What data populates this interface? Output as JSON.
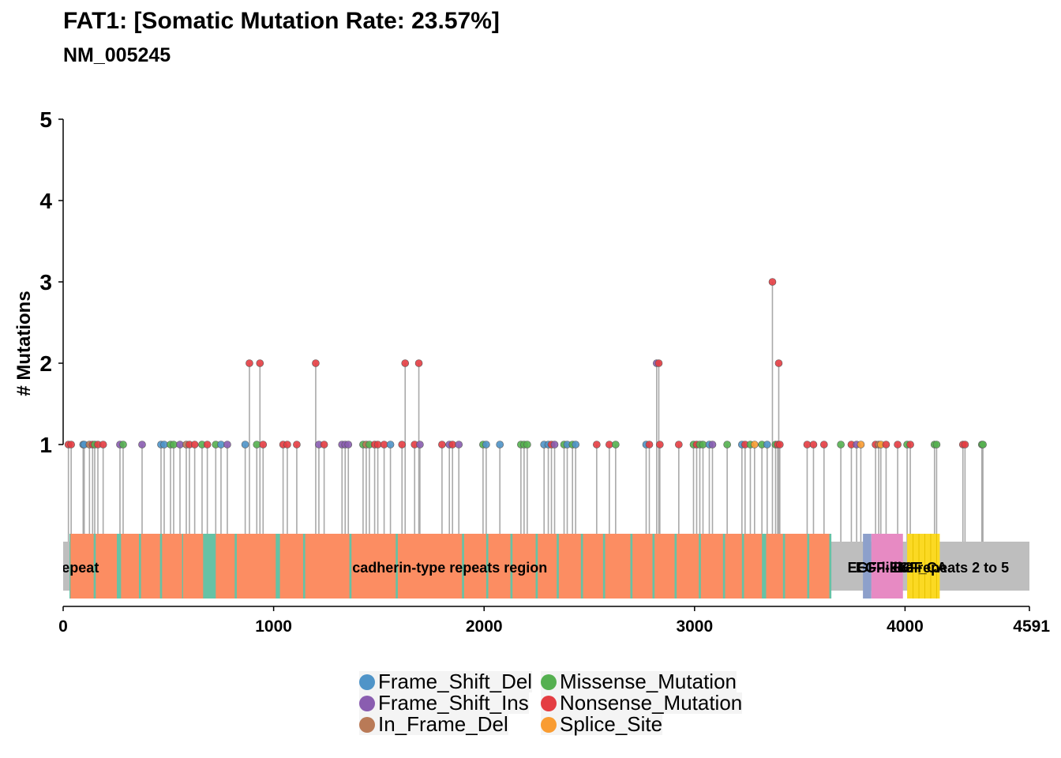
{
  "title": "FAT1: [Somatic Mutation Rate: 23.57%]",
  "subtitle": "NM_005245",
  "chart_data": {
    "type": "lollipop",
    "ylabel": "# Mutations",
    "xlabel": "",
    "xlim": [
      0,
      4591
    ],
    "ylim": [
      0,
      5
    ],
    "x_ticks": [
      0,
      1000,
      2000,
      3000,
      4000,
      4591
    ],
    "y_ticks": [
      1,
      2,
      3,
      4,
      5
    ],
    "grid": false,
    "legend_position": "bottom",
    "colors": {
      "Frame_Shift_Del": "#4f94c8",
      "Frame_Shift_Ins": "#8a5db0",
      "In_Frame_Del": "#b97a57",
      "Missense_Mutation": "#55b050",
      "Nonsense_Mutation": "#e43d42",
      "Splice_Site": "#f99c32"
    },
    "legend": [
      {
        "label": "Frame_Shift_Del",
        "type": "Frame_Shift_Del"
      },
      {
        "label": "Frame_Shift_Ins",
        "type": "Frame_Shift_Ins"
      },
      {
        "label": "In_Frame_Del",
        "type": "In_Frame_Del"
      },
      {
        "label": "Missense_Mutation",
        "type": "Missense_Mutation"
      },
      {
        "label": "Nonsense_Mutation",
        "type": "Nonsense_Mutation"
      },
      {
        "label": "Splice_Site",
        "type": "Splice_Site"
      }
    ],
    "protein_length": 4591,
    "domains": [
      {
        "name": "",
        "start": 30,
        "end": 3650,
        "color": "#66c2a5"
      },
      {
        "name": "",
        "start": 3800,
        "end": 3840,
        "color": "#8da0cb"
      },
      {
        "name": "",
        "start": 3840,
        "end": 3990,
        "color": "#e78ac3"
      },
      {
        "name": "",
        "start": 4010,
        "end": 4165,
        "color": "#fbd923"
      }
    ],
    "repeats": [
      [
        35,
        145
      ],
      [
        155,
        255
      ],
      [
        275,
        360
      ],
      [
        370,
        460
      ],
      [
        470,
        565
      ],
      [
        570,
        665
      ],
      [
        725,
        815
      ],
      [
        825,
        1010
      ],
      [
        1030,
        1140
      ],
      [
        1150,
        1360
      ],
      [
        1370,
        1580
      ],
      [
        1590,
        1895
      ],
      [
        1905,
        2010
      ],
      [
        2020,
        2125
      ],
      [
        2135,
        2245
      ],
      [
        2255,
        2345
      ],
      [
        2355,
        2460
      ],
      [
        2470,
        2565
      ],
      [
        2575,
        2695
      ],
      [
        2705,
        2800
      ],
      [
        2810,
        2905
      ],
      [
        2915,
        3020
      ],
      [
        3030,
        3135
      ],
      [
        3145,
        3225
      ],
      [
        3235,
        3320
      ],
      [
        3340,
        3420
      ],
      [
        3430,
        3535
      ],
      [
        3545,
        3640
      ]
    ],
    "repeat_color": "#fc8d62",
    "labels": [
      {
        "text": "erin_repeat",
        "x": -12
      },
      {
        "text": "cadherin-type repeats region",
        "x": 1837
      },
      {
        "text": "EGF-like repeats 2 to 5",
        "x": 4130
      },
      {
        "text": "EGF-like",
        "x": 3864
      },
      {
        "text": "EGF_CA",
        "x": 4063
      },
      {
        "text": "EGF",
        "x": 4014
      }
    ],
    "mutations": [
      {
        "pos": 25,
        "count": 1,
        "type": "Nonsense_Mutation"
      },
      {
        "pos": 38,
        "count": 1,
        "type": "Nonsense_Mutation"
      },
      {
        "pos": 95,
        "count": 1,
        "type": "Frame_Shift_Del"
      },
      {
        "pos": 100,
        "count": 1,
        "type": "Frame_Shift_Del"
      },
      {
        "pos": 125,
        "count": 1,
        "type": "In_Frame_Del"
      },
      {
        "pos": 140,
        "count": 1,
        "type": "Nonsense_Mutation"
      },
      {
        "pos": 150,
        "count": 1,
        "type": "Missense_Mutation"
      },
      {
        "pos": 165,
        "count": 1,
        "type": "Nonsense_Mutation"
      },
      {
        "pos": 190,
        "count": 1,
        "type": "Nonsense_Mutation"
      },
      {
        "pos": 270,
        "count": 1,
        "type": "Frame_Shift_Ins"
      },
      {
        "pos": 285,
        "count": 1,
        "type": "Missense_Mutation"
      },
      {
        "pos": 375,
        "count": 1,
        "type": "Frame_Shift_Ins"
      },
      {
        "pos": 465,
        "count": 1,
        "type": "Frame_Shift_Del"
      },
      {
        "pos": 480,
        "count": 1,
        "type": "Frame_Shift_Del"
      },
      {
        "pos": 510,
        "count": 1,
        "type": "Missense_Mutation"
      },
      {
        "pos": 525,
        "count": 1,
        "type": "Missense_Mutation"
      },
      {
        "pos": 555,
        "count": 1,
        "type": "Frame_Shift_Ins"
      },
      {
        "pos": 585,
        "count": 1,
        "type": "In_Frame_Del"
      },
      {
        "pos": 600,
        "count": 1,
        "type": "Nonsense_Mutation"
      },
      {
        "pos": 625,
        "count": 1,
        "type": "Nonsense_Mutation"
      },
      {
        "pos": 660,
        "count": 1,
        "type": "Missense_Mutation"
      },
      {
        "pos": 685,
        "count": 1,
        "type": "Nonsense_Mutation"
      },
      {
        "pos": 725,
        "count": 1,
        "type": "Missense_Mutation"
      },
      {
        "pos": 750,
        "count": 1,
        "type": "Frame_Shift_Del"
      },
      {
        "pos": 780,
        "count": 1,
        "type": "Frame_Shift_Ins"
      },
      {
        "pos": 865,
        "count": 1,
        "type": "Frame_Shift_Del"
      },
      {
        "pos": 885,
        "count": 2,
        "type": "Nonsense_Mutation"
      },
      {
        "pos": 920,
        "count": 1,
        "type": "Missense_Mutation"
      },
      {
        "pos": 935,
        "count": 2,
        "type": "Nonsense_Mutation"
      },
      {
        "pos": 950,
        "count": 1,
        "type": "Nonsense_Mutation"
      },
      {
        "pos": 1045,
        "count": 1,
        "type": "Nonsense_Mutation"
      },
      {
        "pos": 1065,
        "count": 1,
        "type": "Nonsense_Mutation"
      },
      {
        "pos": 1110,
        "count": 1,
        "type": "Nonsense_Mutation"
      },
      {
        "pos": 1200,
        "count": 2,
        "type": "Nonsense_Mutation"
      },
      {
        "pos": 1215,
        "count": 1,
        "type": "Frame_Shift_Ins"
      },
      {
        "pos": 1240,
        "count": 1,
        "type": "Nonsense_Mutation"
      },
      {
        "pos": 1325,
        "count": 1,
        "type": "Frame_Shift_Ins"
      },
      {
        "pos": 1340,
        "count": 1,
        "type": "Frame_Shift_Ins"
      },
      {
        "pos": 1355,
        "count": 1,
        "type": "Frame_Shift_Ins"
      },
      {
        "pos": 1425,
        "count": 1,
        "type": "Missense_Mutation"
      },
      {
        "pos": 1440,
        "count": 1,
        "type": "In_Frame_Del"
      },
      {
        "pos": 1455,
        "count": 1,
        "type": "Missense_Mutation"
      },
      {
        "pos": 1480,
        "count": 1,
        "type": "Nonsense_Mutation"
      },
      {
        "pos": 1495,
        "count": 1,
        "type": "Nonsense_Mutation"
      },
      {
        "pos": 1525,
        "count": 1,
        "type": "Nonsense_Mutation"
      },
      {
        "pos": 1555,
        "count": 1,
        "type": "Frame_Shift_Del"
      },
      {
        "pos": 1610,
        "count": 1,
        "type": "Nonsense_Mutation"
      },
      {
        "pos": 1625,
        "count": 2,
        "type": "Nonsense_Mutation"
      },
      {
        "pos": 1670,
        "count": 1,
        "type": "Nonsense_Mutation"
      },
      {
        "pos": 1690,
        "count": 2,
        "type": "Nonsense_Mutation"
      },
      {
        "pos": 1695,
        "count": 1,
        "type": "Frame_Shift_Ins"
      },
      {
        "pos": 1800,
        "count": 1,
        "type": "Nonsense_Mutation"
      },
      {
        "pos": 1835,
        "count": 1,
        "type": "Frame_Shift_Ins"
      },
      {
        "pos": 1850,
        "count": 1,
        "type": "Nonsense_Mutation"
      },
      {
        "pos": 1880,
        "count": 1,
        "type": "Frame_Shift_Ins"
      },
      {
        "pos": 1995,
        "count": 1,
        "type": "Missense_Mutation"
      },
      {
        "pos": 2010,
        "count": 1,
        "type": "Frame_Shift_Del"
      },
      {
        "pos": 2075,
        "count": 1,
        "type": "Frame_Shift_Del"
      },
      {
        "pos": 2175,
        "count": 1,
        "type": "Missense_Mutation"
      },
      {
        "pos": 2190,
        "count": 1,
        "type": "Missense_Mutation"
      },
      {
        "pos": 2205,
        "count": 1,
        "type": "Missense_Mutation"
      },
      {
        "pos": 2285,
        "count": 1,
        "type": "Frame_Shift_Del"
      },
      {
        "pos": 2305,
        "count": 1,
        "type": "Frame_Shift_Del"
      },
      {
        "pos": 2320,
        "count": 1,
        "type": "Nonsense_Mutation"
      },
      {
        "pos": 2335,
        "count": 1,
        "type": "Frame_Shift_Ins"
      },
      {
        "pos": 2380,
        "count": 1,
        "type": "Missense_Mutation"
      },
      {
        "pos": 2395,
        "count": 1,
        "type": "Frame_Shift_Del"
      },
      {
        "pos": 2420,
        "count": 1,
        "type": "Missense_Mutation"
      },
      {
        "pos": 2435,
        "count": 1,
        "type": "Frame_Shift_Del"
      },
      {
        "pos": 2535,
        "count": 1,
        "type": "Nonsense_Mutation"
      },
      {
        "pos": 2595,
        "count": 1,
        "type": "Nonsense_Mutation"
      },
      {
        "pos": 2625,
        "count": 1,
        "type": "Missense_Mutation"
      },
      {
        "pos": 2770,
        "count": 1,
        "type": "Frame_Shift_Del"
      },
      {
        "pos": 2785,
        "count": 1,
        "type": "Nonsense_Mutation"
      },
      {
        "pos": 2820,
        "count": 2,
        "type": "Frame_Shift_Ins"
      },
      {
        "pos": 2830,
        "count": 2,
        "type": "Nonsense_Mutation"
      },
      {
        "pos": 2835,
        "count": 1,
        "type": "Nonsense_Mutation"
      },
      {
        "pos": 2925,
        "count": 1,
        "type": "Nonsense_Mutation"
      },
      {
        "pos": 2995,
        "count": 1,
        "type": "Missense_Mutation"
      },
      {
        "pos": 3010,
        "count": 1,
        "type": "Nonsense_Mutation"
      },
      {
        "pos": 3025,
        "count": 1,
        "type": "Missense_Mutation"
      },
      {
        "pos": 3040,
        "count": 1,
        "type": "Missense_Mutation"
      },
      {
        "pos": 3070,
        "count": 1,
        "type": "Frame_Shift_Del"
      },
      {
        "pos": 3085,
        "count": 1,
        "type": "Frame_Shift_Ins"
      },
      {
        "pos": 3155,
        "count": 1,
        "type": "Missense_Mutation"
      },
      {
        "pos": 3225,
        "count": 1,
        "type": "Frame_Shift_Del"
      },
      {
        "pos": 3240,
        "count": 1,
        "type": "Nonsense_Mutation"
      },
      {
        "pos": 3265,
        "count": 1,
        "type": "Missense_Mutation"
      },
      {
        "pos": 3285,
        "count": 1,
        "type": "Splice_Site"
      },
      {
        "pos": 3320,
        "count": 1,
        "type": "Missense_Mutation"
      },
      {
        "pos": 3345,
        "count": 1,
        "type": "Frame_Shift_Del"
      },
      {
        "pos": 3370,
        "count": 3,
        "type": "Nonsense_Mutation"
      },
      {
        "pos": 3385,
        "count": 1,
        "type": "Missense_Mutation"
      },
      {
        "pos": 3395,
        "count": 1,
        "type": "Nonsense_Mutation"
      },
      {
        "pos": 3400,
        "count": 2,
        "type": "Nonsense_Mutation"
      },
      {
        "pos": 3405,
        "count": 1,
        "type": "Nonsense_Mutation"
      },
      {
        "pos": 3535,
        "count": 1,
        "type": "Nonsense_Mutation"
      },
      {
        "pos": 3565,
        "count": 1,
        "type": "Nonsense_Mutation"
      },
      {
        "pos": 3615,
        "count": 1,
        "type": "Nonsense_Mutation"
      },
      {
        "pos": 3695,
        "count": 1,
        "type": "Missense_Mutation"
      },
      {
        "pos": 3745,
        "count": 1,
        "type": "Nonsense_Mutation"
      },
      {
        "pos": 3770,
        "count": 1,
        "type": "Frame_Shift_Ins"
      },
      {
        "pos": 3790,
        "count": 1,
        "type": "Splice_Site"
      },
      {
        "pos": 3860,
        "count": 1,
        "type": "Nonsense_Mutation"
      },
      {
        "pos": 3875,
        "count": 1,
        "type": "In_Frame_Del"
      },
      {
        "pos": 3885,
        "count": 1,
        "type": "Splice_Site"
      },
      {
        "pos": 3910,
        "count": 1,
        "type": "Nonsense_Mutation"
      },
      {
        "pos": 3965,
        "count": 1,
        "type": "Nonsense_Mutation"
      },
      {
        "pos": 4010,
        "count": 1,
        "type": "Missense_Mutation"
      },
      {
        "pos": 4025,
        "count": 1,
        "type": "Nonsense_Mutation"
      },
      {
        "pos": 4140,
        "count": 1,
        "type": "Missense_Mutation"
      },
      {
        "pos": 4150,
        "count": 1,
        "type": "Missense_Mutation"
      },
      {
        "pos": 4275,
        "count": 1,
        "type": "Nonsense_Mutation"
      },
      {
        "pos": 4285,
        "count": 1,
        "type": "Nonsense_Mutation"
      },
      {
        "pos": 4365,
        "count": 1,
        "type": "Missense_Mutation"
      },
      {
        "pos": 4370,
        "count": 1,
        "type": "Missense_Mutation"
      }
    ]
  }
}
